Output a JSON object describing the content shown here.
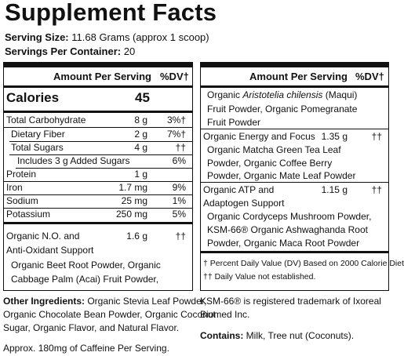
{
  "title": "Supplement Facts",
  "serving_size_label": "Serving Size:",
  "serving_size_value": "11.68 Grams (approx 1 scoop)",
  "servings_label": "Servings Per Container:",
  "servings_value": "20",
  "amount_header": "Amount Per Serving",
  "dv_header": "%DV†",
  "calories_label": "Calories",
  "calories_value": "45",
  "left_rows": [
    {
      "name": "Total Carbohydrate",
      "amount": "8 g",
      "dv": "3%†"
    },
    {
      "name": "Dietary Fiber",
      "amount": "2 g",
      "dv": "7%†"
    },
    {
      "name": "Total Sugars",
      "amount": "4 g",
      "dv": "††"
    },
    {
      "name": "Includes 3 g Added Sugars",
      "amount": "",
      "dv": "6%"
    },
    {
      "name": "Protein",
      "amount": "1 g",
      "dv": ""
    },
    {
      "name": "Iron",
      "amount": "1.7 mg",
      "dv": "9%"
    },
    {
      "name": "Sodium",
      "amount": "25 mg",
      "dv": "1%"
    },
    {
      "name": "Potassium",
      "amount": "250 mg",
      "dv": "5%"
    }
  ],
  "no_blend": {
    "name_line1": "Organic N.O. and",
    "name_line2": "Anti-Oxidant Support",
    "amount": "1.6 g",
    "dv": "††",
    "ing_line1": "Organic Beet Root Powder, Organic",
    "ing_line2": "Cabbage Palm (Acai) Fruit Powder,"
  },
  "right_top": {
    "line1_pre": "Organic ",
    "line1_italic": "Aristotelia chilensis",
    "line1_post": " (Maqui)",
    "line2": "Fruit Powder, Organic Pomegranate",
    "line3": "Fruit Powder"
  },
  "energy_blend": {
    "name": "Organic Energy and Focus",
    "amount": "1.35 g",
    "dv": "††",
    "ing_line1": "Organic Matcha Green Tea Leaf",
    "ing_line2": "Powder, Organic Coffee Berry",
    "ing_line3": "Powder, Organic Mate Leaf Powder"
  },
  "atp_blend": {
    "name_line1": "Organic ATP and",
    "name_line2": "Adaptogen Support",
    "amount": "1.15 g",
    "dv": "††",
    "ing_line1": "Organic Cordyceps Mushroom Powder,",
    "ing_line2": "KSM-66® Organic Ashwaghanda Root",
    "ing_line3": "Powder, Organic Maca Root Powder"
  },
  "footnote1": "† Percent Daily Value (DV) Based on 2000 Calorie Diet",
  "footnote2": "†† Daily Value not established.",
  "other_label": "Other Ingredients:",
  "other_line1": " Organic Stevia Leaf Powder,",
  "other_line2": "Organic Chocolate Bean Powder, Organic Coconut",
  "other_line3": "Sugar, Organic Flavor, and Natural Flavor.",
  "caffeine": "Approx. 180mg of Caffeine Per Serving.",
  "trademark_line1": "KSM-66® is registered trademark of Ixoreal",
  "trademark_line2": "Biomed Inc.",
  "contains_label": "Contains:",
  "contains_value": " Milk, Tree nut (Coconuts)."
}
